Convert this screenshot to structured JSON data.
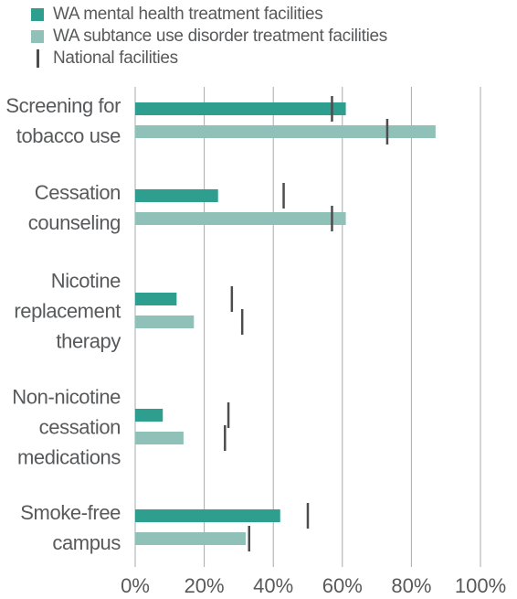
{
  "chart_data": {
    "type": "bar",
    "orientation": "horizontal",
    "categories": [
      [
        "Screening for",
        "tobacco use"
      ],
      [
        "Cessation",
        "counseling"
      ],
      [
        "Nicotine",
        "replacement",
        "therapy"
      ],
      [
        "Non-nicotine",
        "cessation",
        "medications"
      ],
      [
        "Smoke-free",
        "campus"
      ]
    ],
    "series": [
      {
        "name": "WA mental health treatment facilities",
        "color": "#2e9e8f",
        "values": [
          61,
          24,
          12,
          8,
          42
        ]
      },
      {
        "name": "WA subtance use disorder treatment facilities",
        "color": "#8fc1b9",
        "values": [
          87,
          61,
          17,
          14,
          32
        ]
      }
    ],
    "markers": {
      "name": "National facilities",
      "color": "#4d4d4f",
      "values": [
        [
          57,
          73
        ],
        [
          43,
          57
        ],
        [
          28,
          31
        ],
        [
          27,
          26
        ],
        [
          50,
          33
        ]
      ]
    },
    "xlim": [
      0,
      100
    ],
    "ticks": [
      0,
      20,
      40,
      60,
      80,
      100
    ],
    "tick_labels": [
      "0%",
      "20%",
      "40%",
      "60%",
      "80%",
      "100%"
    ],
    "grid": "vertical",
    "legend_position": "top-left"
  }
}
